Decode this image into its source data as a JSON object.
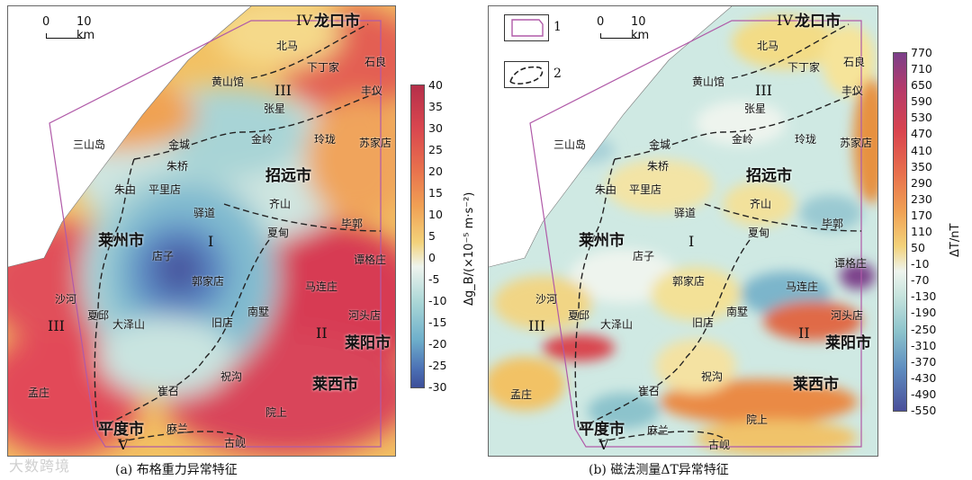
{
  "panels": [
    {
      "caption": "(a) 布格重力异常特征",
      "scale": {
        "zero": "0",
        "dist": "10 km"
      },
      "colorbar": {
        "title": "Δg_B/(×10⁻⁵ m·s⁻²)",
        "ticks": [
          "40",
          "35",
          "30",
          "25",
          "20",
          "15",
          "10",
          "5",
          "0",
          "-5",
          "-10",
          "-15",
          "-20",
          "-25",
          "-30"
        ]
      }
    },
    {
      "caption": "(b) 磁法测量ΔT异常特征",
      "scale": {
        "zero": "0",
        "dist": "10 km"
      },
      "colorbar": {
        "title": "ΔT/nT",
        "ticks": [
          "770",
          "710",
          "650",
          "590",
          "530",
          "470",
          "410",
          "350",
          "290",
          "230",
          "170",
          "110",
          "50",
          "-10",
          "-70",
          "-130",
          "-190",
          "-250",
          "-310",
          "-370",
          "-430",
          "-490",
          "-550"
        ]
      }
    }
  ],
  "places": {
    "longkou": "龙口市",
    "beima": "北马",
    "xiadingjia": "下丁家",
    "shiliang": "石良",
    "huangshanguan": "黄山馆",
    "fengyi": "丰仪",
    "zhangxing": "张星",
    "sanshandao": "三山岛",
    "jincheng": "金城",
    "jinling": "金岭",
    "linglong": "玲珑",
    "sujiadian": "苏家店",
    "zhuqiao": "朱桥",
    "zhaoyuan": "招远市",
    "zhuyou": "朱由",
    "pinglidian": "平里店",
    "qishan": "齐山",
    "yidao": "驿道",
    "bideng": "毕郭",
    "laizhou": "莱州市",
    "xiadian": "夏甸",
    "dianzi": "店子",
    "tangezhuang": "谭格庄",
    "guojiadian": "郭家店",
    "malianzhuang": "马连庄",
    "shahe": "沙河",
    "xiaqiu": "夏邱",
    "dazeshan": "大泽山",
    "jiudian": "旧店",
    "nanshu": "南墅",
    "hetoudian": "河头店",
    "laiyang": "莱阳市",
    "laixi": "莱西市",
    "zhugou": "祝沟",
    "cuizhao": "崔召",
    "mengzhuang": "孟庄",
    "pingdu": "平度市",
    "malan": "麻兰",
    "yuanshang": "院上",
    "guxian": "古岘"
  },
  "zones": [
    "I",
    "II",
    "III",
    "IV",
    "V"
  ],
  "legend": [
    {
      "num": "1"
    },
    {
      "num": "2"
    }
  ],
  "watermark": "大数跨境",
  "colors": {
    "high": "#d8374c",
    "mid": "#f0b13b",
    "neutral": "#eef3ee",
    "low_teal": "#8ec9d0",
    "low": "#3c5ea6",
    "boundary": "#b05aa8",
    "sea": "#ffffff"
  }
}
